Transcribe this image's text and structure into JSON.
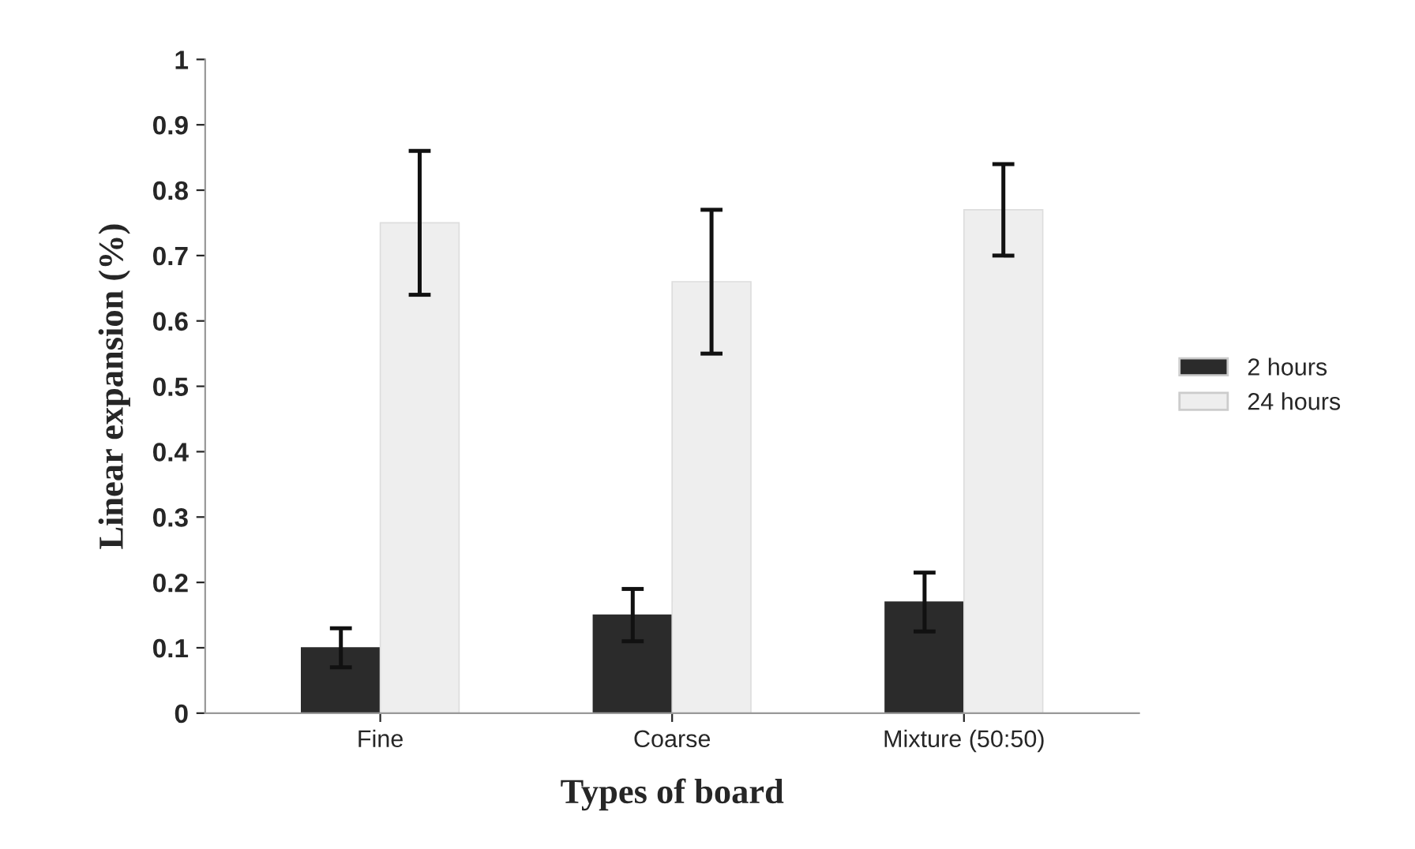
{
  "chart_data": {
    "type": "bar",
    "xlabel": "Types of board",
    "ylabel": "Linear expansion (%)",
    "categories": [
      "Fine",
      "Coarse",
      "Mixture (50:50)"
    ],
    "series": [
      {
        "name": "2 hours",
        "color": "#2b2b2b",
        "values": [
          0.1,
          0.15,
          0.17
        ],
        "errors": [
          0.03,
          0.04,
          0.045
        ]
      },
      {
        "name": "24 hours",
        "color": "#eeeeee",
        "values": [
          0.75,
          0.66,
          0.77
        ],
        "errors": [
          0.11,
          0.11,
          0.07
        ]
      }
    ],
    "ylim": [
      0,
      1
    ],
    "yticks": [
      0,
      0.1,
      0.2,
      0.3,
      0.4,
      0.5,
      0.6,
      0.7,
      0.8,
      0.9,
      1
    ],
    "grid": false,
    "legend": "right"
  }
}
